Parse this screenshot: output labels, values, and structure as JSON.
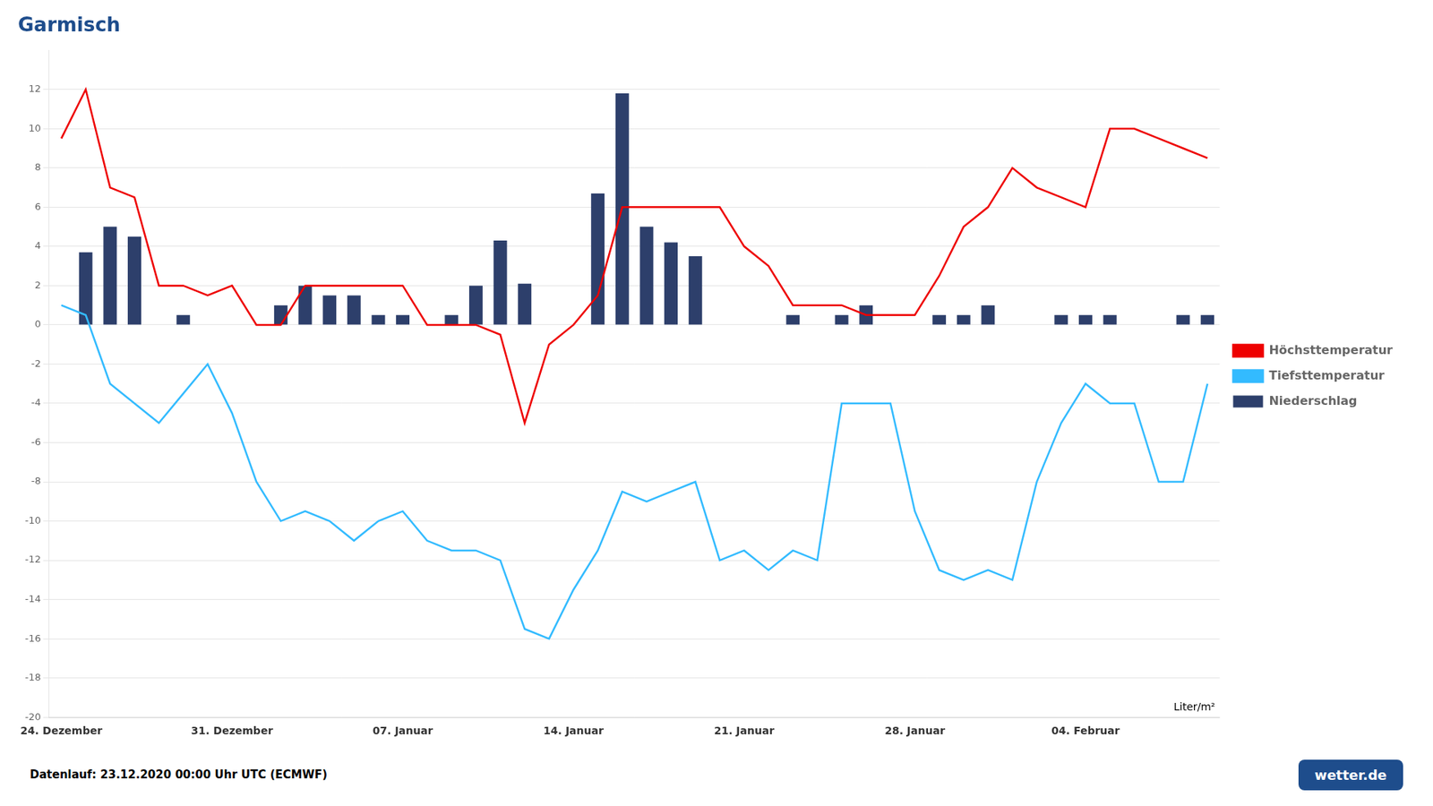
{
  "chart_data": {
    "type": "line",
    "title": "Garmisch",
    "title_color": "#1e4d8c",
    "categories": [
      "24. Dezember",
      null,
      null,
      null,
      null,
      null,
      null,
      "31. Dezember",
      null,
      null,
      null,
      null,
      null,
      null,
      "07. Januar",
      null,
      null,
      null,
      null,
      null,
      null,
      "14. Januar",
      null,
      null,
      null,
      null,
      null,
      null,
      "21. Januar",
      null,
      null,
      null,
      null,
      null,
      null,
      "28. Januar",
      null,
      null,
      null,
      null,
      null,
      null,
      "04. Februar",
      null,
      null,
      null,
      null,
      null
    ],
    "series": [
      {
        "name": "Höchsttemperatur",
        "type": "line",
        "color": "#ee0000",
        "values": [
          9.5,
          12,
          7,
          6.5,
          2,
          2,
          1.5,
          2,
          0,
          0,
          2,
          2,
          2,
          2,
          2,
          0,
          0,
          0,
          -0.5,
          -5,
          -1,
          0,
          1.5,
          6,
          6,
          6,
          6,
          6,
          4,
          3,
          1,
          1,
          1,
          0.5,
          0.5,
          0.5,
          2.5,
          5,
          6,
          8,
          7,
          6.5,
          6,
          10,
          10,
          9.5,
          9,
          8.5
        ]
      },
      {
        "name": "Tiefsttemperatur",
        "type": "line",
        "color": "#33bbff",
        "values": [
          1,
          0.5,
          -3,
          -4,
          -5,
          -3.5,
          -2,
          -4.5,
          -8,
          -10,
          -9.5,
          -10,
          -11,
          -10,
          -9.5,
          -11,
          -11.5,
          -11.5,
          -12,
          -15.5,
          -16,
          -13.5,
          -11.5,
          -8.5,
          -9,
          -8.5,
          -8,
          -12,
          -11.5,
          -12.5,
          -11.5,
          -12,
          -4,
          -4,
          -4,
          -9.5,
          -12.5,
          -13,
          -12.5,
          -13,
          -8,
          -5,
          -3,
          -4,
          -4,
          -8,
          -8,
          -3
        ]
      },
      {
        "name": "Niederschlag",
        "type": "bar",
        "color": "#2d3f6b",
        "values": [
          0,
          3.7,
          5.0,
          4.5,
          0,
          0.5,
          0,
          0,
          0,
          1.0,
          2.0,
          1.5,
          1.5,
          0.5,
          0.5,
          0,
          0.5,
          2.0,
          4.3,
          2.1,
          0,
          0,
          6.7,
          11.8,
          5.0,
          4.2,
          3.5,
          0,
          0,
          0,
          0.5,
          0,
          0.5,
          1.0,
          0,
          0,
          0.5,
          0.5,
          1.0,
          0,
          0,
          0.5,
          0.5,
          0.5,
          0,
          0,
          0.5,
          0.5
        ]
      }
    ],
    "ylim": [
      -20,
      14
    ],
    "yticks": [
      -20,
      -18,
      -16,
      -14,
      -12,
      -10,
      -8,
      -6,
      -4,
      -2,
      0,
      2,
      4,
      6,
      8,
      10,
      12
    ],
    "grid": true,
    "legend": "right",
    "annotations": [
      "Liter/m²",
      "Datenlauf: 23.12.2020 00:00 Uhr UTC (ECMWF)",
      "wetter.de"
    ]
  }
}
